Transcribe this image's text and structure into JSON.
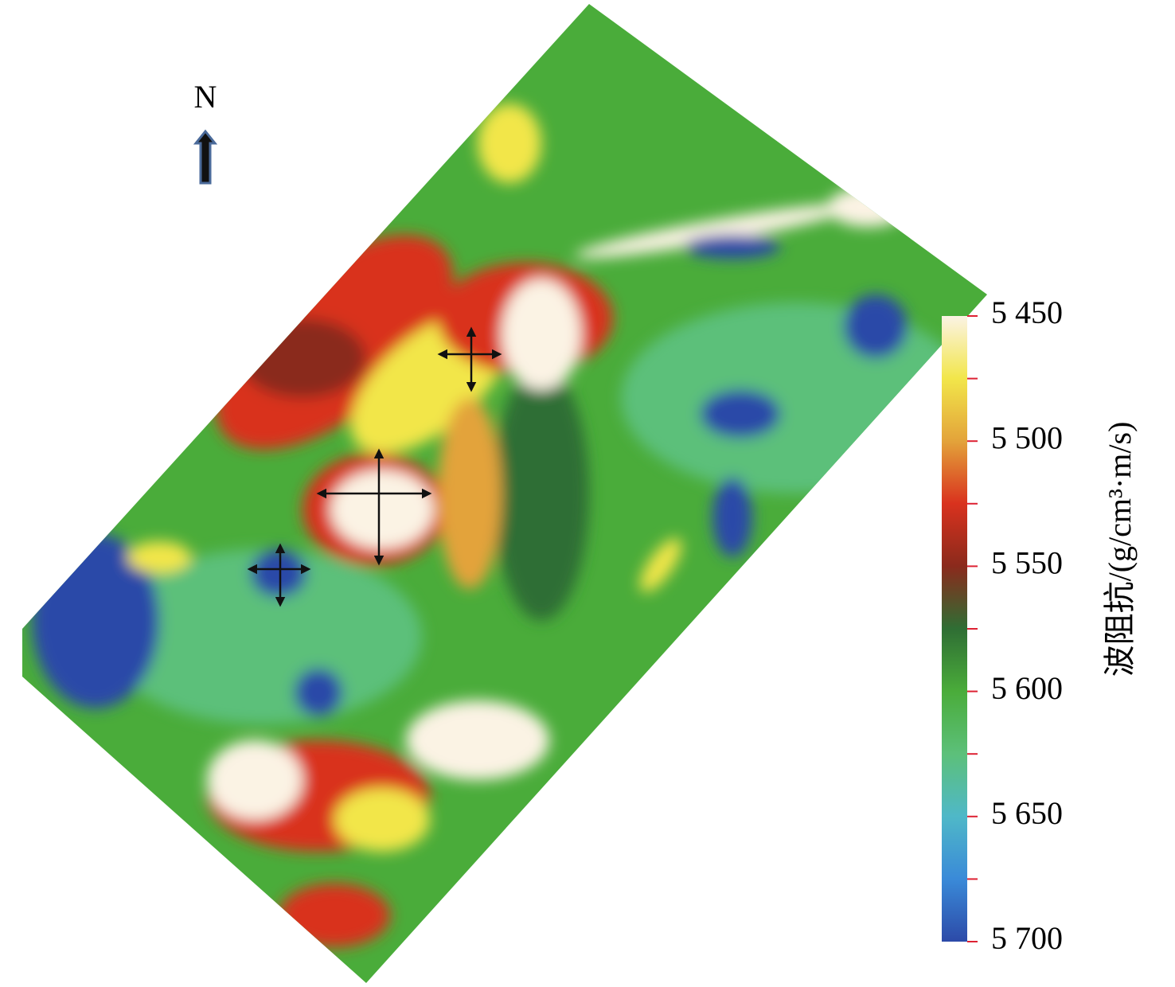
{
  "map": {
    "north_label": "N",
    "colorbar": {
      "label": "波阻抗/(g/cm³·m/s)",
      "lim": [
        5450,
        5700
      ],
      "colors": [
        "#fbf3e4",
        "#f2e64a",
        "#e3a33a",
        "#d9321e",
        "#8a2a1c",
        "#2f6e34",
        "#4aac3a",
        "#5cc07a",
        "#4fb8c8",
        "#3a8ad8",
        "#2c4aa8"
      ],
      "ticks": [
        {
          "value": 5450,
          "label": "5 450"
        },
        {
          "value": 5500,
          "label": "5 500"
        },
        {
          "value": 5550,
          "label": "5 550"
        },
        {
          "value": 5600,
          "label": "5 600"
        },
        {
          "value": 5650,
          "label": "5 650"
        },
        {
          "value": 5700,
          "label": "5 700"
        }
      ],
      "minor_ticks": [
        5475,
        5525,
        5575,
        5625,
        5675
      ]
    }
  }
}
